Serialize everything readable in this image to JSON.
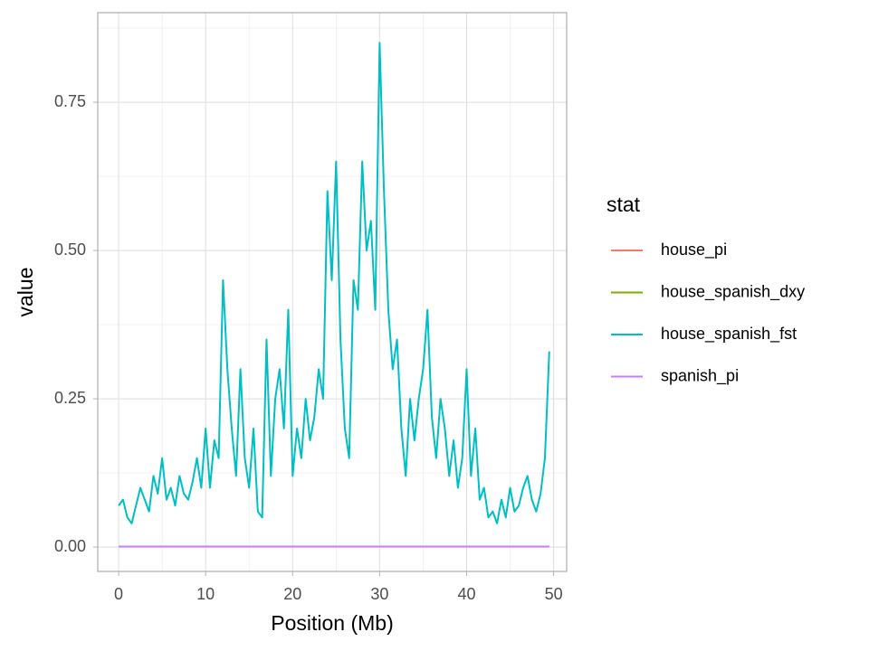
{
  "chart_data": {
    "type": "line",
    "x_label": "Position (Mb)",
    "y_label": "value",
    "legend_title": "stat",
    "xlim": [
      -2.4,
      51.5
    ],
    "ylim": [
      -0.041,
      0.901
    ],
    "xticks": [
      0,
      10,
      20,
      30,
      40,
      50
    ],
    "yticks": [
      {
        "value": 0,
        "label": "0.00"
      },
      {
        "value": 0.25,
        "label": "0.25"
      },
      {
        "value": 0.5,
        "label": "0.50"
      },
      {
        "value": 0.75,
        "label": "0.75"
      }
    ],
    "grid": true,
    "legend": "right",
    "series": [
      {
        "name": "house_pi",
        "color": "#F8766D",
        "x": [
          0,
          49.5
        ],
        "values": [
          0.001,
          0.001
        ]
      },
      {
        "name": "house_spanish_dxy",
        "color": "#7CAE00",
        "x": [
          0,
          49.5
        ],
        "values": [
          0.001,
          0.001
        ]
      },
      {
        "name": "house_spanish_fst",
        "color": "#00BFC4",
        "x": [
          0,
          0.5,
          1,
          1.5,
          2,
          2.5,
          3,
          3.5,
          4,
          4.5,
          5,
          5.5,
          6,
          6.5,
          7,
          7.5,
          8,
          8.5,
          9,
          9.5,
          10,
          10.5,
          11,
          11.5,
          12,
          12.5,
          13,
          13.5,
          14,
          14.5,
          15,
          15.5,
          16,
          16.5,
          17,
          17.5,
          18,
          18.5,
          19,
          19.5,
          20,
          20.5,
          21,
          21.5,
          22,
          22.5,
          23,
          23.5,
          24,
          24.5,
          25,
          25.5,
          26,
          26.5,
          27,
          27.5,
          28,
          28.5,
          29,
          29.5,
          30,
          30.5,
          31,
          31.5,
          32,
          32.5,
          33,
          33.5,
          34,
          34.5,
          35,
          35.5,
          36,
          36.5,
          37,
          37.5,
          38,
          38.5,
          39,
          39.5,
          40,
          40.5,
          41,
          41.5,
          42,
          42.5,
          43,
          43.5,
          44,
          44.5,
          45,
          45.5,
          46,
          46.5,
          47,
          47.5,
          48,
          48.5,
          49,
          49.5
        ],
        "values": [
          0.07,
          0.08,
          0.05,
          0.04,
          0.07,
          0.1,
          0.08,
          0.06,
          0.12,
          0.09,
          0.15,
          0.08,
          0.1,
          0.07,
          0.12,
          0.09,
          0.08,
          0.11,
          0.15,
          0.1,
          0.2,
          0.1,
          0.18,
          0.15,
          0.45,
          0.3,
          0.2,
          0.12,
          0.3,
          0.15,
          0.1,
          0.2,
          0.06,
          0.05,
          0.35,
          0.12,
          0.25,
          0.3,
          0.2,
          0.4,
          0.12,
          0.2,
          0.15,
          0.25,
          0.18,
          0.22,
          0.3,
          0.25,
          0.6,
          0.45,
          0.65,
          0.35,
          0.2,
          0.15,
          0.45,
          0.4,
          0.65,
          0.5,
          0.55,
          0.4,
          0.85,
          0.6,
          0.4,
          0.3,
          0.35,
          0.2,
          0.12,
          0.25,
          0.18,
          0.25,
          0.3,
          0.4,
          0.22,
          0.15,
          0.25,
          0.2,
          0.12,
          0.18,
          0.1,
          0.15,
          0.3,
          0.12,
          0.2,
          0.08,
          0.1,
          0.05,
          0.06,
          0.04,
          0.08,
          0.05,
          0.1,
          0.06,
          0.07,
          0.1,
          0.12,
          0.08,
          0.06,
          0.09,
          0.15,
          0.33
        ]
      },
      {
        "name": "spanish_pi",
        "color": "#C77CFF",
        "x": [
          0,
          49.5
        ],
        "values": [
          0.001,
          0.001
        ]
      }
    ]
  }
}
